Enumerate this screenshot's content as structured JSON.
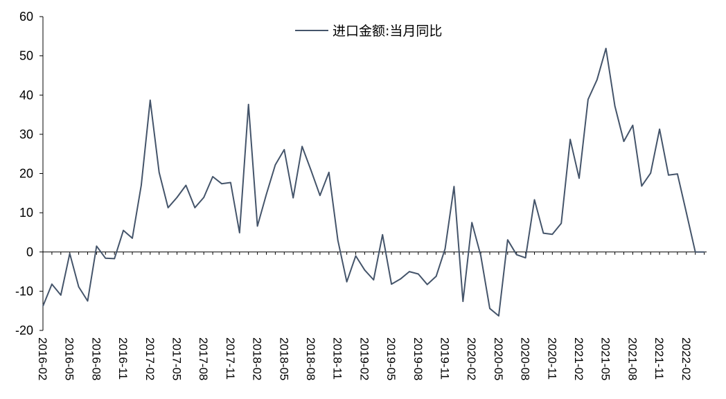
{
  "chart_data": {
    "type": "line",
    "title": "",
    "xlabel": "",
    "ylabel": "",
    "ylim": [
      -20,
      60
    ],
    "yticks": [
      -20,
      -10,
      0,
      10,
      20,
      30,
      40,
      50,
      60
    ],
    "ytick_labels": [
      "-20",
      "-10",
      "0",
      "10",
      "20",
      "30",
      "40",
      "50",
      "60"
    ],
    "legend_position": "top-center",
    "x": [
      "2016-02",
      "2016-03",
      "2016-04",
      "2016-05",
      "2016-06",
      "2016-07",
      "2016-08",
      "2016-09",
      "2016-10",
      "2016-11",
      "2016-12",
      "2017-01",
      "2017-02",
      "2017-03",
      "2017-04",
      "2017-05",
      "2017-06",
      "2017-07",
      "2017-08",
      "2017-09",
      "2017-10",
      "2017-11",
      "2017-12",
      "2018-01",
      "2018-02",
      "2018-03",
      "2018-04",
      "2018-05",
      "2018-06",
      "2018-07",
      "2018-08",
      "2018-09",
      "2018-10",
      "2018-11",
      "2018-12",
      "2019-01",
      "2019-02",
      "2019-03",
      "2019-04",
      "2019-05",
      "2019-06",
      "2019-07",
      "2019-08",
      "2019-09",
      "2019-10",
      "2019-11",
      "2019-12",
      "2020-01",
      "2020-02",
      "2020-03",
      "2020-04",
      "2020-05",
      "2020-06",
      "2020-07",
      "2020-08",
      "2020-09",
      "2020-10",
      "2020-11",
      "2020-12",
      "2021-01",
      "2021-02",
      "2021-03",
      "2021-04",
      "2021-05",
      "2021-06",
      "2021-07",
      "2021-08",
      "2021-09",
      "2021-10",
      "2021-11",
      "2021-12",
      "2022-01",
      "2022-02",
      "2022-03",
      "2022-04"
    ],
    "xtick_labels": [
      "2016-02",
      "2016-05",
      "2016-08",
      "2016-11",
      "2017-02",
      "2017-05",
      "2017-08",
      "2017-11",
      "2018-02",
      "2018-05",
      "2018-08",
      "2018-11",
      "2019-02",
      "2019-05",
      "2019-08",
      "2019-11",
      "2020-02",
      "2020-05",
      "2020-08",
      "2020-11",
      "2021-02",
      "2021-05",
      "2021-08",
      "2021-11",
      "2022-02"
    ],
    "series": [
      {
        "name": "进口金额:当月同比",
        "color": "#44546a",
        "values": [
          -13.8,
          -8.2,
          -11.0,
          -0.4,
          -8.9,
          -12.5,
          1.5,
          -1.6,
          -1.7,
          5.5,
          3.5,
          17.0,
          38.7,
          20.3,
          11.3,
          13.9,
          17.0,
          11.3,
          13.9,
          19.2,
          17.4,
          17.7,
          4.9,
          37.6,
          6.6,
          14.7,
          22.2,
          26.1,
          13.8,
          26.9,
          20.8,
          14.4,
          20.3,
          3.0,
          -7.6,
          -1.0,
          -4.6,
          -7.1,
          4.4,
          -8.2,
          -6.9,
          -5.0,
          -5.6,
          -8.3,
          -6.2,
          0.8,
          16.7,
          -12.6,
          7.5,
          -1.0,
          -14.4,
          -16.3,
          3.1,
          -0.7,
          -1.5,
          13.3,
          4.8,
          4.5,
          7.3,
          28.7,
          18.8,
          38.9,
          43.9,
          51.9,
          37.2,
          28.2,
          32.3,
          16.8,
          20.1,
          31.3,
          19.6,
          19.9,
          10.0,
          0.0,
          0.0
        ]
      }
    ]
  }
}
